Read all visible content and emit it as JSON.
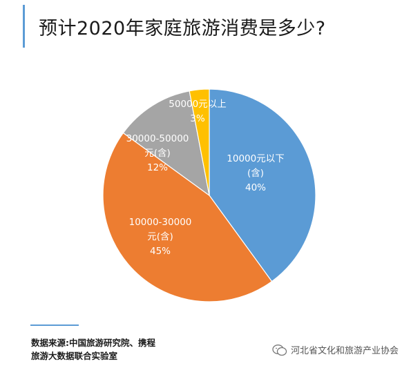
{
  "title": "预计2020年家庭旅游消费是多少?",
  "chart_data": {
    "type": "pie",
    "title": "预计2020年家庭旅游消费是多少?",
    "slices": [
      {
        "label_lines": [
          "10000元以下",
          "(含)"
        ],
        "percent_label": "40%",
        "value": 40,
        "color": "#5b9bd5",
        "text_color": "#ffffff"
      },
      {
        "label_lines": [
          "10000-30000",
          "元(含)"
        ],
        "percent_label": "45%",
        "value": 45,
        "color": "#ed7d31",
        "text_color": "#ffffff"
      },
      {
        "label_lines": [
          "30000-50000",
          "元(含)"
        ],
        "percent_label": "12%",
        "value": 12,
        "color": "#a5a5a5",
        "text_color": "#ffffff"
      },
      {
        "label_lines": [
          "50000元以上"
        ],
        "percent_label": "3%",
        "value": 3,
        "color": "#ffc000",
        "text_color": "#ffffff"
      }
    ]
  },
  "source": {
    "line1": "数据来源:中国旅游研究院、携程",
    "line2": "旅游大数据联合实验室"
  },
  "watermark": "河北省文化和旅游产业协会"
}
